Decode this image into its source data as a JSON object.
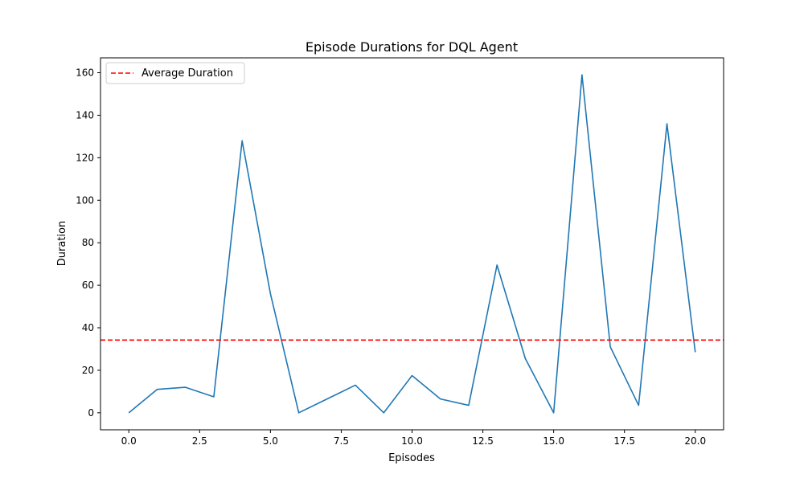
{
  "chart_data": {
    "type": "line",
    "title": "Episode Durations for DQL Agent",
    "xlabel": "Episodes",
    "ylabel": "Duration",
    "xlim": [
      -1.0,
      21.0
    ],
    "ylim": [
      -8.0,
      167.0
    ],
    "x_ticks": [
      0.0,
      2.5,
      5.0,
      7.5,
      10.0,
      12.5,
      15.0,
      17.5,
      20.0
    ],
    "x_tick_labels": [
      "0.0",
      "2.5",
      "5.0",
      "7.5",
      "10.0",
      "12.5",
      "15.0",
      "17.5",
      "20.0"
    ],
    "y_ticks": [
      0,
      20,
      40,
      60,
      80,
      100,
      120,
      140,
      160
    ],
    "y_tick_labels": [
      "0",
      "20",
      "40",
      "60",
      "80",
      "100",
      "120",
      "140",
      "160"
    ],
    "grid": false,
    "legend": {
      "placement": "top-left",
      "entries": [
        "Average Duration"
      ]
    },
    "series": [
      {
        "color": "#1f77b4",
        "style": "solid",
        "x": [
          0,
          1,
          2,
          3,
          4,
          5,
          6,
          7,
          8,
          9,
          10,
          11,
          12,
          13,
          14,
          15,
          16,
          17,
          18,
          19,
          20
        ],
        "values": [
          0,
          11,
          12,
          7.5,
          128,
          56,
          0,
          6.5,
          13,
          0,
          17.5,
          6.5,
          3.5,
          69.5,
          25.5,
          0,
          159,
          31,
          3.5,
          136,
          28.5
        ]
      }
    ],
    "hlines": [
      {
        "name": "Average Duration",
        "y": 34.2,
        "color": "#ff0000",
        "style": "dashed"
      }
    ]
  }
}
